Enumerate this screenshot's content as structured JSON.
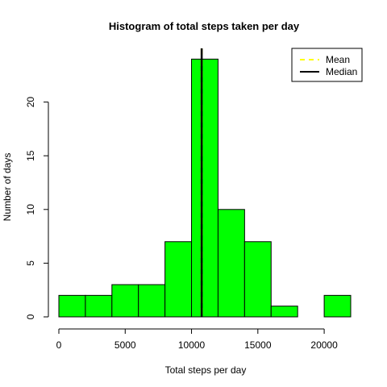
{
  "chart_data": {
    "type": "bar",
    "title": "Histogram of total steps taken per day",
    "xlabel": "Total steps per day",
    "ylabel": "Number of days",
    "bin_edges": [
      0,
      2000,
      4000,
      6000,
      8000,
      10000,
      12000,
      14000,
      16000,
      18000,
      20000,
      22000
    ],
    "values": [
      2,
      2,
      3,
      3,
      7,
      24,
      10,
      7,
      1,
      0,
      2
    ],
    "xlim": [
      0,
      22000
    ],
    "ylim": [
      0,
      25
    ],
    "xticks": [
      0,
      5000,
      10000,
      15000,
      20000
    ],
    "yticks": [
      0,
      5,
      10,
      15,
      20
    ],
    "bar_color": "#00FF00",
    "reference_lines": [
      {
        "name": "Mean",
        "value": 10766,
        "color": "#FFFF00",
        "style": "dashed"
      },
      {
        "name": "Median",
        "value": 10765,
        "color": "#000000",
        "style": "solid"
      }
    ],
    "legend": {
      "position": "top-right",
      "entries": [
        {
          "label": "Mean",
          "color": "#FFFF00",
          "style": "dashed"
        },
        {
          "label": "Median",
          "color": "#000000",
          "style": "solid"
        }
      ]
    },
    "grid": false
  }
}
